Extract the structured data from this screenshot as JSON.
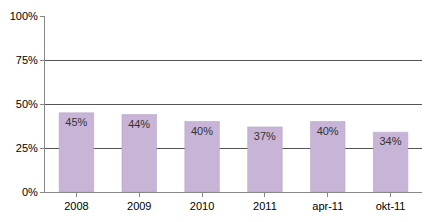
{
  "chart_data": {
    "type": "bar",
    "categories": [
      "2008",
      "2009",
      "2010",
      "2011",
      "apr-11",
      "okt-11"
    ],
    "values": [
      45,
      44,
      40,
      37,
      40,
      34
    ],
    "value_labels": [
      "45%",
      "44%",
      "40%",
      "37%",
      "40%",
      "34%"
    ],
    "color": "#c8b4d6",
    "ylim": [
      0,
      100
    ],
    "yticks": [
      {
        "value": 0,
        "label": "0%"
      },
      {
        "value": 25,
        "label": "25%"
      },
      {
        "value": 50,
        "label": "50%"
      },
      {
        "value": 75,
        "label": "75%"
      },
      {
        "value": 100,
        "label": "100%"
      }
    ],
    "grid": true,
    "data_labels": true
  }
}
